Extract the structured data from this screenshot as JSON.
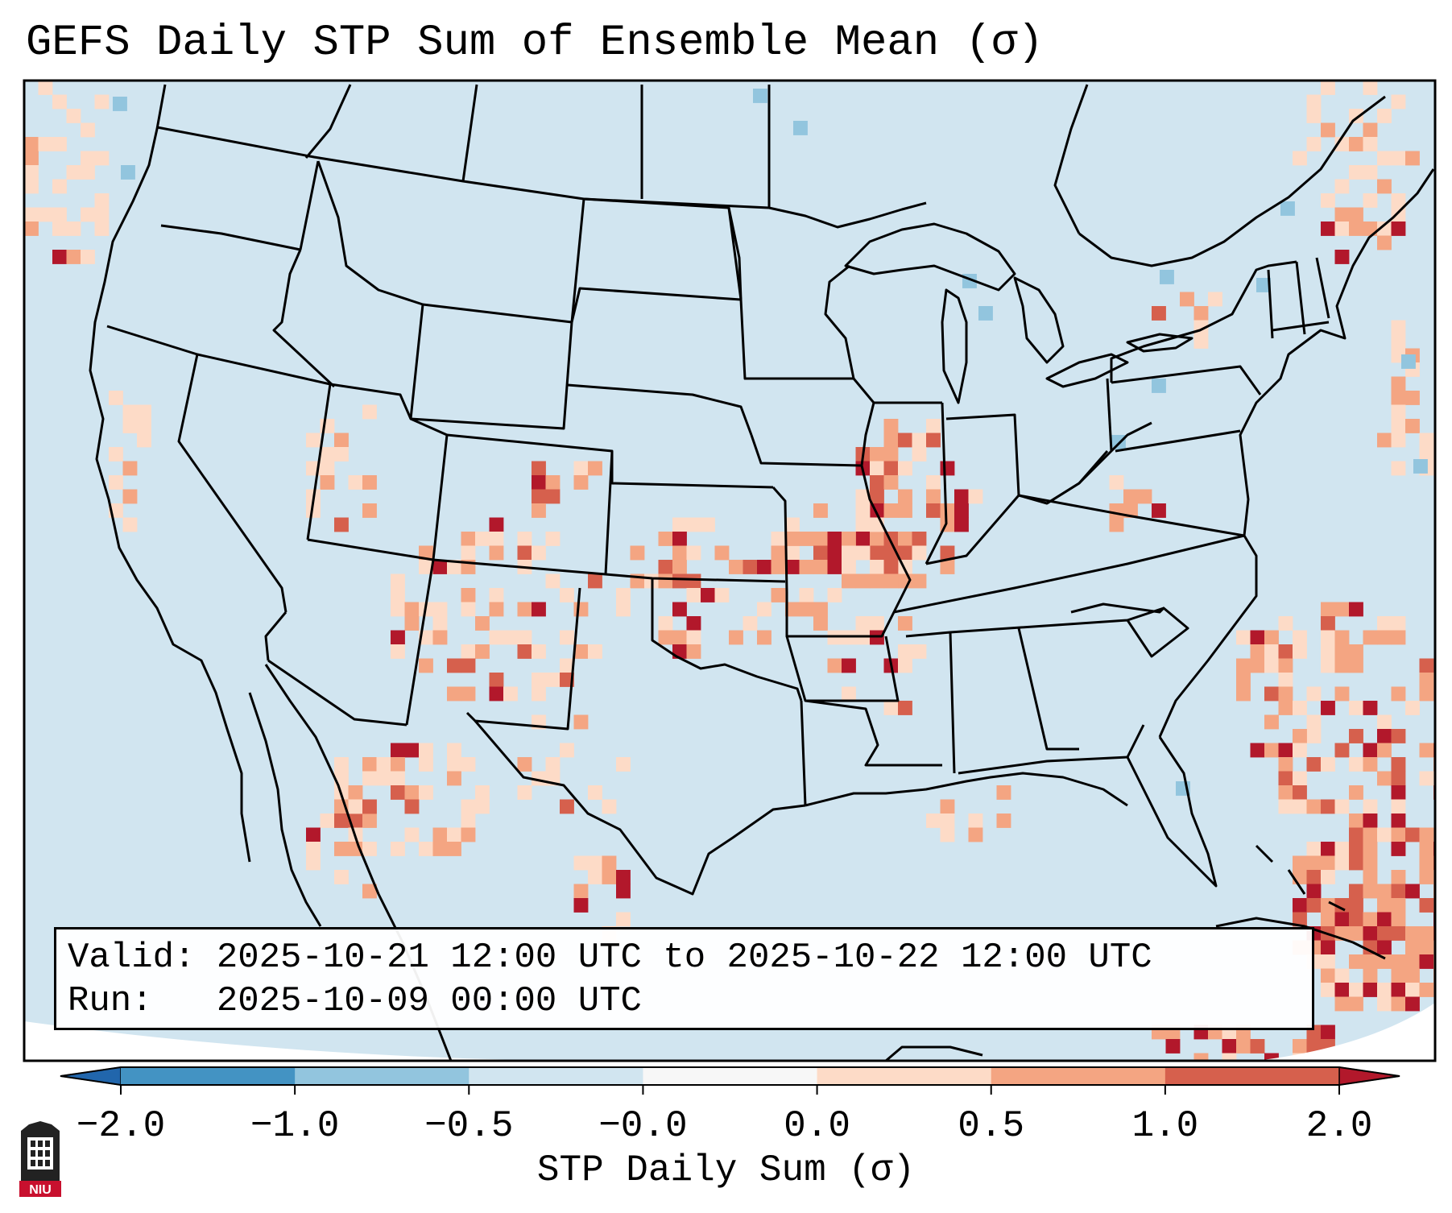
{
  "title": "GEFS Daily STP Sum of Ensemble Mean (σ)",
  "info": {
    "valid_label": "Valid:",
    "valid_value": "2025-10-21 12:00 UTC to 2025-10-22 12:00 UTC",
    "run_label": "Run:",
    "run_value": "2025-10-09 00:00 UTC"
  },
  "colorbar": {
    "label": "STP Daily Sum (σ)",
    "ticks": [
      "−2.0",
      "−1.0",
      "−0.5",
      "−0.0",
      "0.0",
      "0.5",
      "1.0",
      "2.0"
    ],
    "bins": [
      {
        "color": "#4393c3"
      },
      {
        "color": "#92c5de"
      },
      {
        "color": "#d1e5f0"
      },
      {
        "color": "#f7f7f7"
      },
      {
        "color": "#fddbc7"
      },
      {
        "color": "#f4a582"
      },
      {
        "color": "#d6604d"
      }
    ],
    "under_color": "#2166ac",
    "over_color": "#b2182b"
  },
  "colors": {
    "background": "#d1e5f0",
    "light": "#fddbc7",
    "medium": "#f4a582",
    "strong": "#d6604d",
    "extreme": "#b2182b",
    "blue": "#92c5de"
  },
  "logo": {
    "text": "NIU",
    "icon": "niu-tower-icon"
  }
}
